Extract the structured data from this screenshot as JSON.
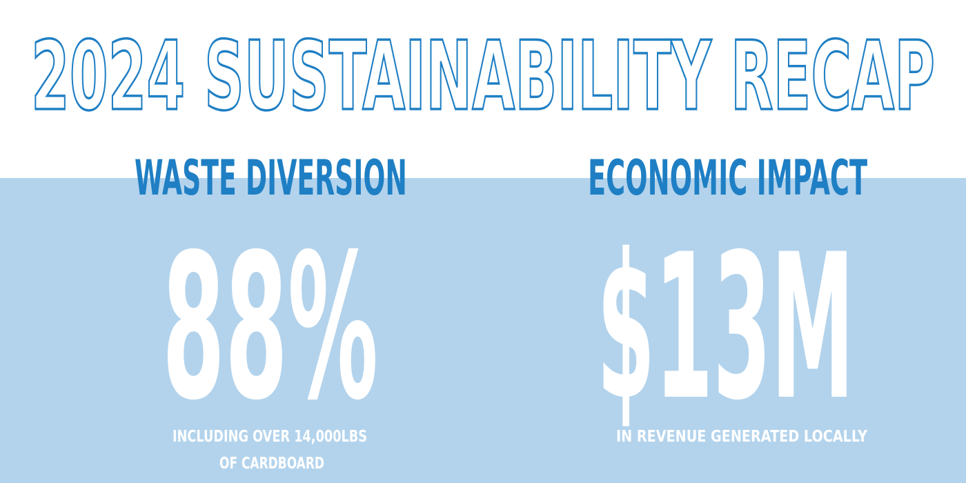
{
  "header": {
    "title": "2024 SUSTAINABILITY RECAP"
  },
  "stats": [
    {
      "heading": "WASTE DIVERSION",
      "value": "88%",
      "caption": [
        "INCLUDING OVER 14,000LBS",
        "OF CARDBOARD"
      ]
    },
    {
      "heading": "ECONOMIC IMPACT",
      "value": "$13M",
      "caption": [
        "IN REVENUE GENERATED LOCALLY"
      ]
    }
  ]
}
